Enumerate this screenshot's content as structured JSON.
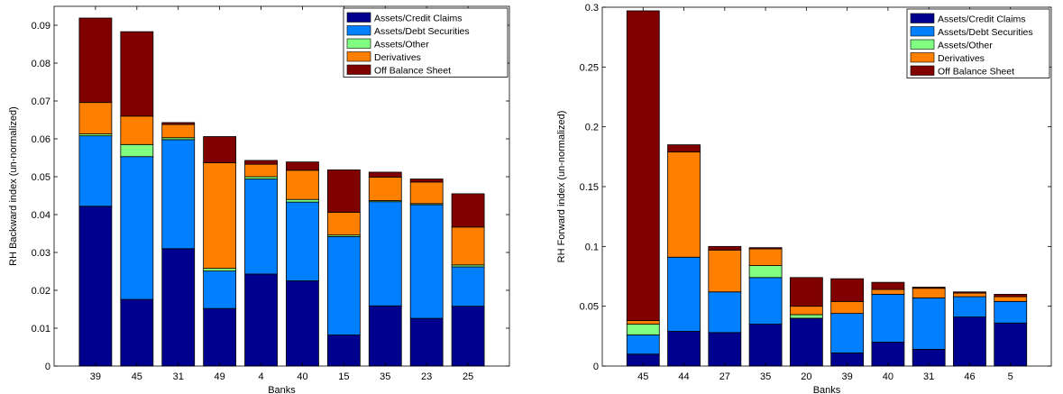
{
  "chart_data": [
    {
      "type": "bar",
      "stacked": true,
      "xlabel": "Banks",
      "ylabel": "RH Backward index (un-normalized)",
      "ylim": [
        0,
        0.095
      ],
      "yticks": [
        "0",
        "0.01",
        "0.02",
        "0.03",
        "0.04",
        "0.05",
        "0.06",
        "0.07",
        "0.08",
        "0.09"
      ],
      "ytick_values": [
        0,
        0.01,
        0.02,
        0.03,
        0.04,
        0.05,
        0.06,
        0.07,
        0.08,
        0.09
      ],
      "legend_position": "top-right",
      "grid": false,
      "categories": [
        "39",
        "45",
        "31",
        "49",
        "4",
        "40",
        "15",
        "35",
        "23",
        "25"
      ],
      "series": [
        {
          "name": "Assets/Credit Claims",
          "color": "#00008f",
          "values": [
            0.0422,
            0.0176,
            0.031,
            0.0152,
            0.0243,
            0.0225,
            0.0082,
            0.0159,
            0.0126,
            0.0158
          ]
        },
        {
          "name": "Assets/Debt Securities",
          "color": "#0080ff",
          "values": [
            0.0186,
            0.0377,
            0.0288,
            0.0099,
            0.0251,
            0.0208,
            0.026,
            0.0275,
            0.03,
            0.0104
          ]
        },
        {
          "name": "Assets/Other",
          "color": "#80ff80",
          "values": [
            0.0005,
            0.0032,
            0.0005,
            0.0007,
            0.0006,
            0.0007,
            0.0004,
            0.0003,
            0.0003,
            0.0005
          ]
        },
        {
          "name": "Derivatives",
          "color": "#ff8000",
          "values": [
            0.0083,
            0.0075,
            0.0035,
            0.0279,
            0.0033,
            0.0077,
            0.006,
            0.0062,
            0.0057,
            0.01
          ]
        },
        {
          "name": "Off Balance Sheet",
          "color": "#800000",
          "values": [
            0.0223,
            0.0223,
            0.0005,
            0.0069,
            0.001,
            0.0022,
            0.0112,
            0.0013,
            0.0008,
            0.0088
          ]
        }
      ]
    },
    {
      "type": "bar",
      "stacked": true,
      "xlabel": "Banks",
      "ylabel": "RH Forward index (un-normalized)",
      "ylim": [
        0,
        0.3
      ],
      "yticks": [
        "0",
        "0.05",
        "0.1",
        "0.15",
        "0.2",
        "0.25",
        "0.3"
      ],
      "ytick_values": [
        0,
        0.05,
        0.1,
        0.15,
        0.2,
        0.25,
        0.3
      ],
      "legend_position": "top-right",
      "grid": false,
      "categories": [
        "45",
        "44",
        "27",
        "35",
        "20",
        "39",
        "40",
        "31",
        "46",
        "5"
      ],
      "series": [
        {
          "name": "Assets/Credit Claims",
          "color": "#00008f",
          "values": [
            0.01,
            0.029,
            0.028,
            0.035,
            0.04,
            0.011,
            0.02,
            0.014,
            0.041,
            0.036
          ]
        },
        {
          "name": "Assets/Debt Securities",
          "color": "#0080ff",
          "values": [
            0.016,
            0.062,
            0.034,
            0.039,
            0.0,
            0.033,
            0.04,
            0.043,
            0.017,
            0.018
          ]
        },
        {
          "name": "Assets/Other",
          "color": "#80ff80",
          "values": [
            0.009,
            0.0,
            0.0,
            0.01,
            0.003,
            0.0,
            0.0,
            0.0,
            0.0,
            0.0
          ]
        },
        {
          "name": "Derivatives",
          "color": "#ff8000",
          "values": [
            0.003,
            0.088,
            0.035,
            0.014,
            0.007,
            0.01,
            0.004,
            0.008,
            0.003,
            0.004
          ]
        },
        {
          "name": "Off Balance Sheet",
          "color": "#800000",
          "values": [
            0.259,
            0.006,
            0.003,
            0.001,
            0.024,
            0.019,
            0.006,
            0.001,
            0.001,
            0.002
          ]
        }
      ]
    }
  ]
}
